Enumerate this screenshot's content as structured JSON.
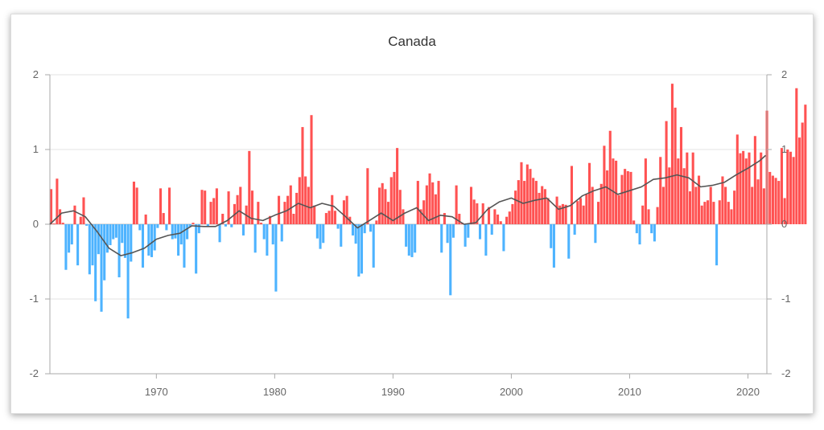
{
  "chart_data": {
    "type": "bar",
    "title": "Canada",
    "xlabel": "",
    "ylabel": "",
    "xlim": [
      1961,
      2021.6
    ],
    "ylim": [
      -2,
      2
    ],
    "yticks": [
      2,
      1,
      0,
      -1,
      -2
    ],
    "xticks": [
      1970,
      1980,
      1990,
      2000,
      2010,
      2020
    ],
    "grid": true,
    "legend": "none",
    "series": [
      {
        "kind": "bar",
        "x_start": 1961,
        "step": 0.25,
        "values": [
          0.47,
          0.01,
          0.61,
          0.2,
          0.02,
          -0.61,
          -0.38,
          -0.27,
          0.25,
          -0.55,
          0.1,
          0.36,
          -0.02,
          -0.67,
          -0.55,
          -1.03,
          -0.4,
          -1.17,
          -0.75,
          -0.38,
          -0.28,
          -0.2,
          -0.18,
          -0.71,
          -0.25,
          -0.45,
          -1.26,
          -0.5,
          0.57,
          0.49,
          -0.08,
          -0.58,
          0.13,
          -0.42,
          -0.44,
          -0.35,
          -0.05,
          0.48,
          0.15,
          -0.08,
          0.49,
          -0.2,
          -0.19,
          -0.42,
          -0.27,
          -0.58,
          -0.2,
          -0.04,
          0.02,
          -0.66,
          -0.12,
          0.46,
          0.45,
          -0.03,
          0.3,
          0.35,
          0.48,
          -0.24,
          0.14,
          -0.03,
          0.44,
          -0.04,
          0.27,
          0.39,
          0.5,
          -0.15,
          0.25,
          0.98,
          0.45,
          -0.38,
          0.3,
          0.02,
          -0.2,
          -0.42,
          0.11,
          -0.27,
          -0.9,
          0.38,
          -0.23,
          0.3,
          0.38,
          0.52,
          0.14,
          0.42,
          0.63,
          1.3,
          0.64,
          0.5,
          1.46,
          0.25,
          -0.19,
          -0.33,
          -0.25,
          0.15,
          0.18,
          0.39,
          0.18,
          -0.06,
          -0.3,
          0.32,
          0.38,
          0.1,
          -0.15,
          -0.26,
          -0.7,
          -0.66,
          -0.12,
          0.75,
          -0.1,
          -0.58,
          0.05,
          0.49,
          0.55,
          0.47,
          0.3,
          0.63,
          0.7,
          1.02,
          0.46,
          0.2,
          -0.3,
          -0.42,
          -0.44,
          -0.38,
          0.58,
          0.2,
          0.32,
          0.52,
          0.68,
          0.56,
          0.4,
          0.58,
          -0.38,
          0.15,
          -0.25,
          -0.95,
          -0.18,
          0.52,
          0.14,
          0.02,
          -0.3,
          -0.18,
          0.5,
          0.33,
          0.28,
          -0.2,
          0.28,
          -0.42,
          0.23,
          -0.14,
          0.2,
          0.13,
          0.04,
          -0.36,
          0.1,
          0.17,
          0.27,
          0.45,
          0.59,
          0.83,
          0.58,
          0.8,
          0.74,
          0.62,
          0.58,
          0.42,
          0.51,
          0.47,
          0.35,
          -0.32,
          -0.58,
          0.37,
          0.25,
          0.27,
          0.26,
          -0.46,
          0.78,
          -0.14,
          0.31,
          0.35,
          0.25,
          0.4,
          0.82,
          0.5,
          -0.25,
          0.3,
          0.54,
          1.05,
          0.72,
          1.25,
          0.88,
          0.85,
          0.39,
          0.66,
          0.74,
          0.71,
          0.7,
          0.05,
          -0.12,
          -0.27,
          0.25,
          0.88,
          0.2,
          -0.12,
          -0.23,
          0.23,
          0.9,
          0.5,
          1.38,
          0.76,
          1.88,
          1.56,
          0.88,
          1.3,
          0.75,
          0.96,
          0.44,
          0.96,
          0.5,
          0.65,
          0.25,
          0.3,
          0.32,
          0.5,
          0.3,
          -0.55,
          0.32,
          0.64,
          0.5,
          0.3,
          0.2,
          0.45,
          1.2,
          0.95,
          0.98,
          0.88,
          0.96,
          0.5,
          1.18,
          0.6,
          0.96,
          0.48,
          1.52,
          0.7,
          0.65,
          0.62,
          0.58,
          1.02,
          0.35,
          1.0,
          0.97,
          0.9,
          1.82,
          1.16,
          1.36,
          1.6
        ],
        "positive_color": "#ff5252",
        "negative_color": "#4db3ff"
      },
      {
        "kind": "line",
        "x": [
          1961.0,
          1962.0,
          1963.0,
          1964.0,
          1965.0,
          1966.0,
          1967.0,
          1968.0,
          1969.0,
          1970.0,
          1971.0,
          1972.0,
          1973.0,
          1974.0,
          1975.0,
          1976.0,
          1977.0,
          1978.0,
          1979.0,
          1980.0,
          1981.0,
          1982.0,
          1983.0,
          1984.0,
          1985.0,
          1986.0,
          1987.0,
          1988.0,
          1989.0,
          1990.0,
          1991.0,
          1992.0,
          1993.0,
          1994.0,
          1995.0,
          1996.0,
          1997.0,
          1998.0,
          1999.0,
          2000.0,
          2001.0,
          2002.0,
          2003.0,
          2004.0,
          2005.0,
          2006.0,
          2007.0,
          2008.0,
          2009.0,
          2010.0,
          2011.0,
          2012.0,
          2013.0,
          2014.0,
          2015.0,
          2016.0,
          2017.0,
          2018.0,
          2019.0,
          2020.0,
          2021.0,
          2021.5
        ],
        "values": [
          0.0,
          0.15,
          0.18,
          0.1,
          -0.1,
          -0.32,
          -0.42,
          -0.38,
          -0.32,
          -0.2,
          -0.15,
          -0.12,
          -0.02,
          -0.03,
          -0.03,
          0.05,
          0.18,
          0.08,
          0.05,
          0.12,
          0.18,
          0.28,
          0.22,
          0.28,
          0.24,
          0.1,
          -0.05,
          0.05,
          0.15,
          0.05,
          0.15,
          0.22,
          0.05,
          0.12,
          0.1,
          0.0,
          0.02,
          0.2,
          0.3,
          0.35,
          0.28,
          0.32,
          0.35,
          0.2,
          0.25,
          0.38,
          0.45,
          0.5,
          0.4,
          0.45,
          0.5,
          0.6,
          0.62,
          0.66,
          0.62,
          0.5,
          0.52,
          0.56,
          0.66,
          0.75,
          0.85,
          0.92
        ],
        "color": "#555555"
      }
    ]
  }
}
